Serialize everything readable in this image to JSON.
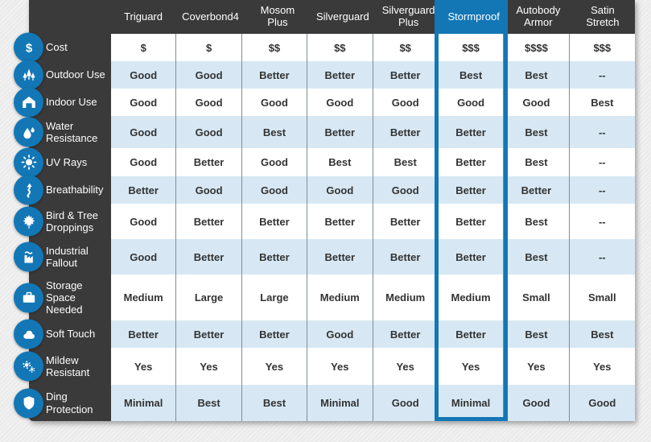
{
  "colors": {
    "accent": "#1377b6",
    "panel": "#3a3a3a",
    "row_alt": "#d7e8f4",
    "grid_line": "#7f8c96",
    "cell_text": "#333333",
    "page_bg": "#ebebeb",
    "header_text": "#ffffff"
  },
  "chart_data": {
    "type": "table",
    "title": "",
    "columns": [
      {
        "label": "Triguard",
        "highlighted": false
      },
      {
        "label": "Coverbond4",
        "highlighted": false
      },
      {
        "label": "Mosom Plus",
        "highlighted": false
      },
      {
        "label": "Silverguard",
        "highlighted": false
      },
      {
        "label": "Silverguard Plus",
        "highlighted": false
      },
      {
        "label": "Stormproof",
        "highlighted": true
      },
      {
        "label": "Autobody Armor",
        "highlighted": false
      },
      {
        "label": "Satin Stretch",
        "highlighted": false
      }
    ],
    "rows": [
      {
        "label": "Cost",
        "icon": "dollar-icon",
        "values": [
          "$",
          "$",
          "$$",
          "$$",
          "$$",
          "$$$",
          "$$$$",
          "$$$"
        ]
      },
      {
        "label": "Outdoor Use",
        "icon": "trees-icon",
        "values": [
          "Good",
          "Good",
          "Better",
          "Better",
          "Better",
          "Best",
          "Best",
          "--"
        ]
      },
      {
        "label": "Indoor Use",
        "icon": "house-icon",
        "values": [
          "Good",
          "Good",
          "Good",
          "Good",
          "Good",
          "Good",
          "Good",
          "Best"
        ]
      },
      {
        "label": "Water Resistance",
        "icon": "water-drops-icon",
        "values": [
          "Good",
          "Good",
          "Best",
          "Better",
          "Better",
          "Better",
          "Best",
          "--"
        ]
      },
      {
        "label": "UV Rays",
        "icon": "sun-icon",
        "values": [
          "Good",
          "Better",
          "Good",
          "Best",
          "Best",
          "Better",
          "Best",
          "--"
        ]
      },
      {
        "label": "Breathability",
        "icon": "breathability-icon",
        "values": [
          "Better",
          "Good",
          "Good",
          "Good",
          "Good",
          "Better",
          "Better",
          "--"
        ]
      },
      {
        "label": "Bird & Tree Droppings",
        "icon": "maple-leaf-icon",
        "values": [
          "Good",
          "Better",
          "Better",
          "Better",
          "Better",
          "Better",
          "Best",
          "--"
        ]
      },
      {
        "label": "Industrial Fallout",
        "icon": "factory-icon",
        "values": [
          "Good",
          "Better",
          "Better",
          "Better",
          "Better",
          "Better",
          "Best",
          "--"
        ]
      },
      {
        "label": "Storage Space Needed",
        "icon": "suitcase-icon",
        "values": [
          "Medium",
          "Large",
          "Large",
          "Medium",
          "Medium",
          "Medium",
          "Small",
          "Small"
        ]
      },
      {
        "label": "Soft Touch",
        "icon": "cloud-icon",
        "values": [
          "Better",
          "Better",
          "Better",
          "Good",
          "Better",
          "Better",
          "Best",
          "Best"
        ]
      },
      {
        "label": "Mildew Resistant",
        "icon": "mildew-icon",
        "values": [
          "Yes",
          "Yes",
          "Yes",
          "Yes",
          "Yes",
          "Yes",
          "Yes",
          "Yes"
        ]
      },
      {
        "label": "Ding Protection",
        "icon": "shield-icon",
        "values": [
          "Minimal",
          "Best",
          "Best",
          "Minimal",
          "Good",
          "Minimal",
          "Good",
          "Good"
        ]
      }
    ]
  }
}
